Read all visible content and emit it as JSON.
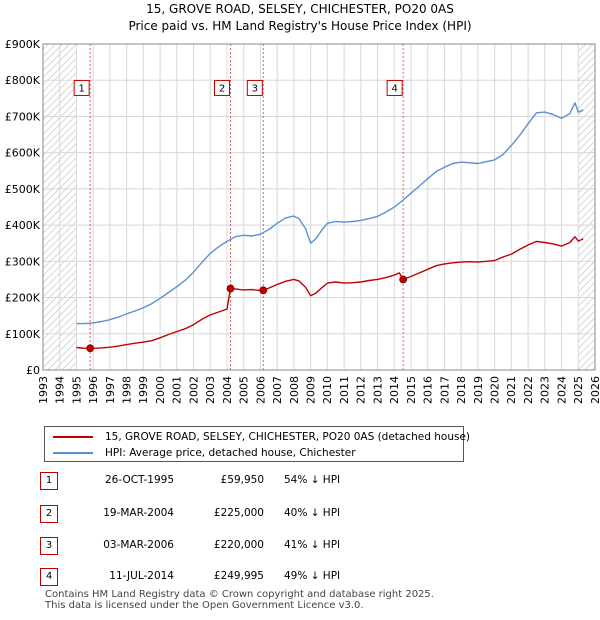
{
  "chart_data": {
    "type": "line",
    "title": "15, GROVE ROAD, SELSEY, CHICHESTER, PO20 0AS",
    "subtitle": "Price paid vs. HM Land Registry's House Price Index (HPI)",
    "xlim": [
      1993,
      2026
    ],
    "ylim": [
      0,
      900000
    ],
    "x_ticks": [
      1993,
      1994,
      1995,
      1996,
      1997,
      1998,
      1999,
      2000,
      2001,
      2002,
      2003,
      2004,
      2005,
      2006,
      2007,
      2008,
      2009,
      2010,
      2011,
      2012,
      2013,
      2014,
      2015,
      2016,
      2017,
      2018,
      2019,
      2020,
      2021,
      2022,
      2023,
      2024,
      2025,
      2026
    ],
    "y_ticks": [
      {
        "value": 0,
        "label": "£0"
      },
      {
        "value": 100000,
        "label": "£100K"
      },
      {
        "value": 200000,
        "label": "£200K"
      },
      {
        "value": 300000,
        "label": "£300K"
      },
      {
        "value": 400000,
        "label": "£400K"
      },
      {
        "value": 500000,
        "label": "£500K"
      },
      {
        "value": 600000,
        "label": "£600K"
      },
      {
        "value": 700000,
        "label": "£700K"
      },
      {
        "value": 800000,
        "label": "£800K"
      },
      {
        "value": 900000,
        "label": "£900K"
      }
    ],
    "hatch_ranges": [
      [
        1993,
        1995.0
      ],
      [
        2025.0,
        2026
      ]
    ],
    "series": [
      {
        "name": "15, GROVE ROAD, SELSEY, CHICHESTER, PO20 0AS (detached house)",
        "color": "#c00000",
        "points": [
          [
            1995.0,
            62000
          ],
          [
            1995.5,
            60000
          ],
          [
            1995.82,
            59950
          ],
          [
            1996.0,
            60000
          ],
          [
            1996.5,
            61000
          ],
          [
            1997.0,
            63000
          ],
          [
            1997.5,
            66000
          ],
          [
            1998.0,
            70000
          ],
          [
            1998.5,
            74000
          ],
          [
            1999.0,
            77000
          ],
          [
            1999.5,
            81000
          ],
          [
            2000.0,
            89000
          ],
          [
            2000.5,
            98000
          ],
          [
            2001.0,
            106000
          ],
          [
            2001.5,
            114000
          ],
          [
            2002.0,
            125000
          ],
          [
            2002.5,
            140000
          ],
          [
            2003.0,
            152000
          ],
          [
            2003.5,
            160000
          ],
          [
            2004.0,
            168000
          ],
          [
            2004.21,
            225000
          ],
          [
            2004.6,
            223000
          ],
          [
            2005.0,
            221000
          ],
          [
            2005.5,
            222000
          ],
          [
            2006.0,
            219000
          ],
          [
            2006.17,
            220000
          ],
          [
            2006.5,
            226000
          ],
          [
            2007.0,
            236000
          ],
          [
            2007.5,
            245000
          ],
          [
            2008.0,
            250000
          ],
          [
            2008.3,
            246000
          ],
          [
            2008.7,
            228000
          ],
          [
            2009.0,
            205000
          ],
          [
            2009.3,
            212000
          ],
          [
            2009.7,
            228000
          ],
          [
            2010.0,
            240000
          ],
          [
            2010.5,
            243000
          ],
          [
            2011.0,
            240000
          ],
          [
            2011.5,
            241000
          ],
          [
            2012.0,
            243000
          ],
          [
            2012.5,
            247000
          ],
          [
            2013.0,
            250000
          ],
          [
            2013.5,
            255000
          ],
          [
            2014.0,
            262000
          ],
          [
            2014.3,
            268000
          ],
          [
            2014.53,
            249995
          ],
          [
            2015.0,
            258000
          ],
          [
            2015.5,
            268000
          ],
          [
            2016.0,
            278000
          ],
          [
            2016.5,
            288000
          ],
          [
            2017.0,
            293000
          ],
          [
            2017.5,
            296000
          ],
          [
            2018.0,
            298000
          ],
          [
            2018.5,
            299000
          ],
          [
            2019.0,
            298000
          ],
          [
            2019.5,
            300000
          ],
          [
            2020.0,
            302000
          ],
          [
            2020.5,
            312000
          ],
          [
            2021.0,
            320000
          ],
          [
            2021.5,
            333000
          ],
          [
            2022.0,
            345000
          ],
          [
            2022.5,
            355000
          ],
          [
            2023.0,
            352000
          ],
          [
            2023.5,
            348000
          ],
          [
            2024.0,
            342000
          ],
          [
            2024.5,
            352000
          ],
          [
            2024.8,
            368000
          ],
          [
            2025.0,
            356000
          ],
          [
            2025.3,
            362000
          ]
        ]
      },
      {
        "name": "HPI: Average price, detached house, Chichester",
        "color": "#5b8fd6",
        "points": [
          [
            1995.0,
            128000
          ],
          [
            1995.5,
            128000
          ],
          [
            1996.0,
            130000
          ],
          [
            1996.5,
            134000
          ],
          [
            1997.0,
            139000
          ],
          [
            1997.5,
            146000
          ],
          [
            1998.0,
            155000
          ],
          [
            1998.5,
            163000
          ],
          [
            1999.0,
            172000
          ],
          [
            1999.5,
            183000
          ],
          [
            2000.0,
            198000
          ],
          [
            2000.5,
            214000
          ],
          [
            2001.0,
            230000
          ],
          [
            2001.5,
            248000
          ],
          [
            2002.0,
            270000
          ],
          [
            2002.5,
            297000
          ],
          [
            2003.0,
            322000
          ],
          [
            2003.5,
            340000
          ],
          [
            2004.0,
            355000
          ],
          [
            2004.5,
            368000
          ],
          [
            2005.0,
            372000
          ],
          [
            2005.5,
            370000
          ],
          [
            2006.0,
            375000
          ],
          [
            2006.5,
            388000
          ],
          [
            2007.0,
            405000
          ],
          [
            2007.5,
            420000
          ],
          [
            2008.0,
            425000
          ],
          [
            2008.3,
            418000
          ],
          [
            2008.7,
            390000
          ],
          [
            2009.0,
            350000
          ],
          [
            2009.3,
            362000
          ],
          [
            2009.7,
            388000
          ],
          [
            2010.0,
            405000
          ],
          [
            2010.5,
            410000
          ],
          [
            2011.0,
            408000
          ],
          [
            2011.5,
            410000
          ],
          [
            2012.0,
            413000
          ],
          [
            2012.5,
            418000
          ],
          [
            2013.0,
            424000
          ],
          [
            2013.5,
            436000
          ],
          [
            2014.0,
            450000
          ],
          [
            2014.5,
            468000
          ],
          [
            2015.0,
            488000
          ],
          [
            2015.5,
            508000
          ],
          [
            2016.0,
            528000
          ],
          [
            2016.5,
            548000
          ],
          [
            2017.0,
            560000
          ],
          [
            2017.5,
            570000
          ],
          [
            2018.0,
            574000
          ],
          [
            2018.5,
            572000
          ],
          [
            2019.0,
            570000
          ],
          [
            2019.5,
            575000
          ],
          [
            2020.0,
            580000
          ],
          [
            2020.5,
            595000
          ],
          [
            2021.0,
            620000
          ],
          [
            2021.5,
            648000
          ],
          [
            2022.0,
            680000
          ],
          [
            2022.5,
            710000
          ],
          [
            2023.0,
            712000
          ],
          [
            2023.5,
            705000
          ],
          [
            2024.0,
            695000
          ],
          [
            2024.5,
            708000
          ],
          [
            2024.8,
            738000
          ],
          [
            2025.0,
            712000
          ],
          [
            2025.3,
            718000
          ]
        ]
      }
    ],
    "transactions": [
      {
        "id": "1",
        "x": 1995.82,
        "value": 59950
      },
      {
        "id": "2",
        "x": 2004.21,
        "value": 225000
      },
      {
        "id": "3",
        "x": 2006.17,
        "value": 220000
      },
      {
        "id": "4",
        "x": 2014.53,
        "value": 249995
      }
    ],
    "marker_label_value": 780000
  },
  "legend": {
    "property_label": "15, GROVE ROAD, SELSEY, CHICHESTER, PO20 0AS (detached house)",
    "hpi_label": "HPI: Average price, detached house, Chichester"
  },
  "table": {
    "rows": [
      {
        "num": "1",
        "date": "26-OCT-1995",
        "price": "£59,950",
        "hpi": "54% ↓ HPI"
      },
      {
        "num": "2",
        "date": "19-MAR-2004",
        "price": "£225,000",
        "hpi": "40% ↓ HPI"
      },
      {
        "num": "3",
        "date": "03-MAR-2006",
        "price": "£220,000",
        "hpi": "41% ↓ HPI"
      },
      {
        "num": "4",
        "date": "11-JUL-2014",
        "price": "£249,995",
        "hpi": "49% ↓ HPI"
      }
    ]
  },
  "footer": {
    "line1": "Contains HM Land Registry data © Crown copyright and database right 2025.",
    "line2": "This data is licensed under the Open Government Licence v3.0."
  },
  "colors": {
    "property": "#c00000",
    "hpi": "#5b8fd6",
    "grid": "#d8d8d8",
    "plot_bg": "#ffffff"
  }
}
